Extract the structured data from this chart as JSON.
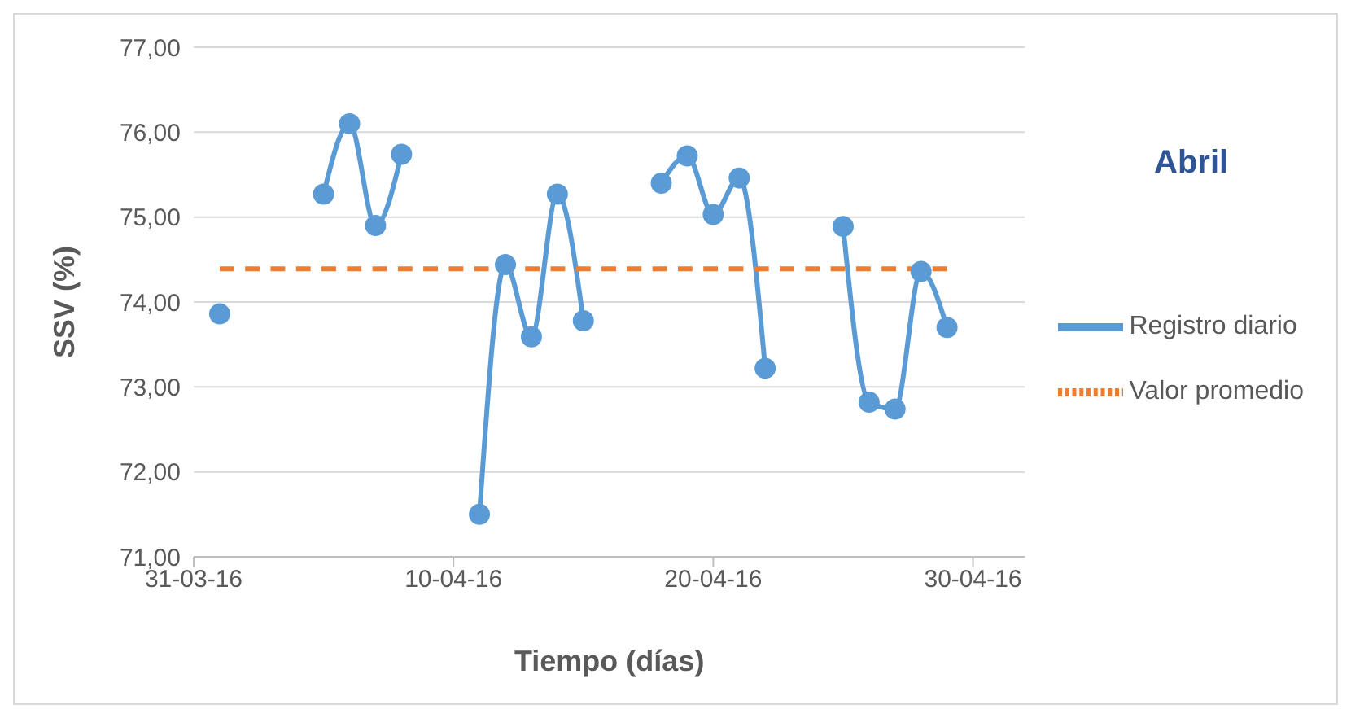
{
  "chart_data": {
    "type": "line",
    "xlabel": "Tiempo (días)",
    "ylabel": "SSV (%)",
    "annotations": [
      "Abril"
    ],
    "x": [
      "--04-01",
      "--04-02",
      "--04-03",
      "--04-04",
      "--04-05",
      "--04-06",
      "--04-07",
      "--04-08",
      "--04-09",
      "--04-10",
      "--04-11",
      "--04-12",
      "--04-13",
      "--04-14",
      "--04-15",
      "--04-16",
      "--04-17",
      "--04-18",
      "--04-19",
      "--04-20",
      "--04-21",
      "--04-22",
      "--04-23",
      "--04-24",
      "--04-25",
      "--04-26",
      "--04-27",
      "--04-28",
      "--04-29"
    ],
    "series": [
      {
        "name": "Registro diario",
        "color": "#5b9bd5",
        "marker": "circle",
        "line_style": "solid",
        "values": [
          73.86,
          null,
          null,
          null,
          75.27,
          76.1,
          74.9,
          75.74,
          null,
          null,
          71.5,
          74.44,
          73.59,
          75.27,
          73.78,
          null,
          null,
          75.4,
          75.72,
          75.03,
          75.46,
          73.22,
          null,
          null,
          74.89,
          72.82,
          72.74,
          74.36,
          73.7
        ]
      },
      {
        "name": "Valor promedio",
        "color": "#ed7d31",
        "marker": "none",
        "line_style": "dashed",
        "values": [
          74.39,
          74.39,
          74.39,
          74.39,
          74.39,
          74.39,
          74.39,
          74.39,
          74.39,
          74.39,
          74.39,
          74.39,
          74.39,
          74.39,
          74.39,
          74.39,
          74.39,
          74.39,
          74.39,
          74.39,
          74.39,
          74.39,
          74.39,
          74.39,
          74.39,
          74.39,
          74.39,
          74.39,
          74.39
        ]
      }
    ],
    "xlim": [
      "--03-31",
      "--05-02"
    ],
    "xticks": [
      {
        "value": "--03-31",
        "label": "31-03-16"
      },
      {
        "value": "--04-10",
        "label": "10-04-16"
      },
      {
        "value": "--04-20",
        "label": "20-04-16"
      },
      {
        "value": "--04-30",
        "label": "30-04-16"
      }
    ],
    "ylim": [
      71,
      77
    ],
    "yticks": [
      {
        "value": 71,
        "label": "71,00"
      },
      {
        "value": 72,
        "label": "72,00"
      },
      {
        "value": 73,
        "label": "73,00"
      },
      {
        "value": 74,
        "label": "74,00"
      },
      {
        "value": 75,
        "label": "75,00"
      },
      {
        "value": 76,
        "label": "76,00"
      },
      {
        "value": 77,
        "label": "77,00"
      }
    ],
    "grid": "y",
    "legend": "right"
  }
}
